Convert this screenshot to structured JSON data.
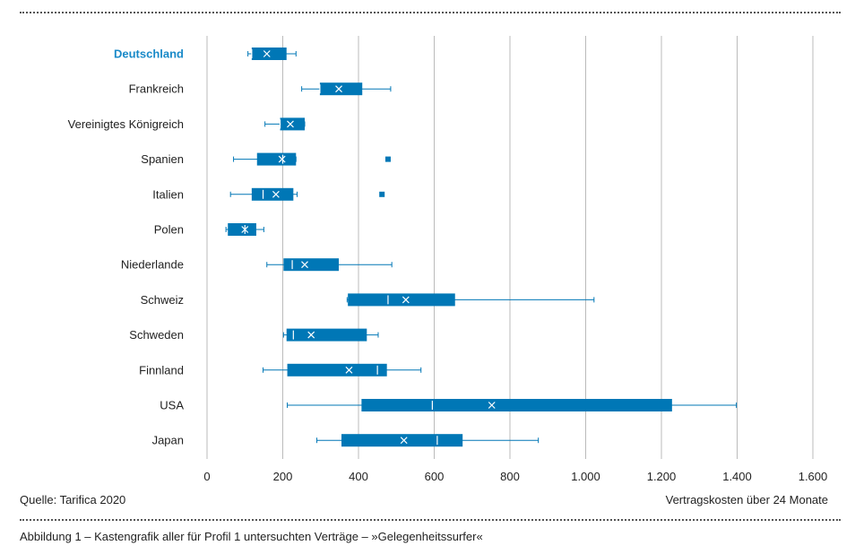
{
  "chart_data": {
    "type": "boxplot",
    "xlabel": "Vertragskosten über 24 Monate",
    "xlim": [
      0,
      1600
    ],
    "xticks": [
      {
        "value": 0,
        "label": "0"
      },
      {
        "value": 200,
        "label": "200"
      },
      {
        "value": 400,
        "label": "400"
      },
      {
        "value": 600,
        "label": "600"
      },
      {
        "value": 800,
        "label": "800"
      },
      {
        "value": 1000,
        "label": "1.000"
      },
      {
        "value": 1200,
        "label": "1.200"
      },
      {
        "value": 1400,
        "label": "1.400"
      },
      {
        "value": 1600,
        "label": "1.600"
      }
    ],
    "grid": true,
    "highlight": "Deutschland",
    "colors": {
      "box": "#0077b6",
      "highlight_label": "#1a8ac8",
      "grid": "#bbbbbb"
    },
    "categories": [
      {
        "label": "Deutschland",
        "min": 108,
        "q1": 118,
        "median": 118,
        "q3": 210,
        "max": 235,
        "mean": 158,
        "outliers": []
      },
      {
        "label": "Frankreich",
        "min": 250,
        "q1": 298,
        "median": 298,
        "q3": 410,
        "max": 485,
        "mean": 348,
        "outliers": []
      },
      {
        "label": "Vereinigtes Königreich",
        "min": 153,
        "q1": 193,
        "median": 193,
        "q3": 258,
        "max": 258,
        "mean": 220,
        "outliers": []
      },
      {
        "label": "Spanien",
        "min": 70,
        "q1": 132,
        "median": 200,
        "q3": 235,
        "max": 235,
        "mean": 198,
        "outliers": [
          478
        ]
      },
      {
        "label": "Italien",
        "min": 62,
        "q1": 118,
        "median": 148,
        "q3": 228,
        "max": 238,
        "mean": 182,
        "outliers": [
          462
        ]
      },
      {
        "label": "Polen",
        "min": 50,
        "q1": 55,
        "median": 100,
        "q3": 130,
        "max": 150,
        "mean": 100,
        "outliers": []
      },
      {
        "label": "Niederlande",
        "min": 158,
        "q1": 202,
        "median": 225,
        "q3": 348,
        "max": 488,
        "mean": 258,
        "outliers": []
      },
      {
        "label": "Schweiz",
        "min": 370,
        "q1": 372,
        "median": 478,
        "q3": 655,
        "max": 1022,
        "mean": 525,
        "outliers": []
      },
      {
        "label": "Schweden",
        "min": 202,
        "q1": 210,
        "median": 228,
        "q3": 422,
        "max": 452,
        "mean": 275,
        "outliers": []
      },
      {
        "label": "Finnland",
        "min": 148,
        "q1": 212,
        "median": 450,
        "q3": 475,
        "max": 565,
        "mean": 375,
        "outliers": []
      },
      {
        "label": "USA",
        "min": 212,
        "q1": 408,
        "median": 595,
        "q3": 1228,
        "max": 1398,
        "mean": 752,
        "outliers": []
      },
      {
        "label": "Japan",
        "min": 290,
        "q1": 355,
        "median": 608,
        "q3": 675,
        "max": 875,
        "mean": 520,
        "outliers": []
      }
    ]
  },
  "footer": {
    "source": "Quelle: Tarifica 2020",
    "caption": "Abbildung 1 – Kastengrafik aller für Profil 1 untersuchten Verträge – »Gelegenheitssurfer«"
  }
}
